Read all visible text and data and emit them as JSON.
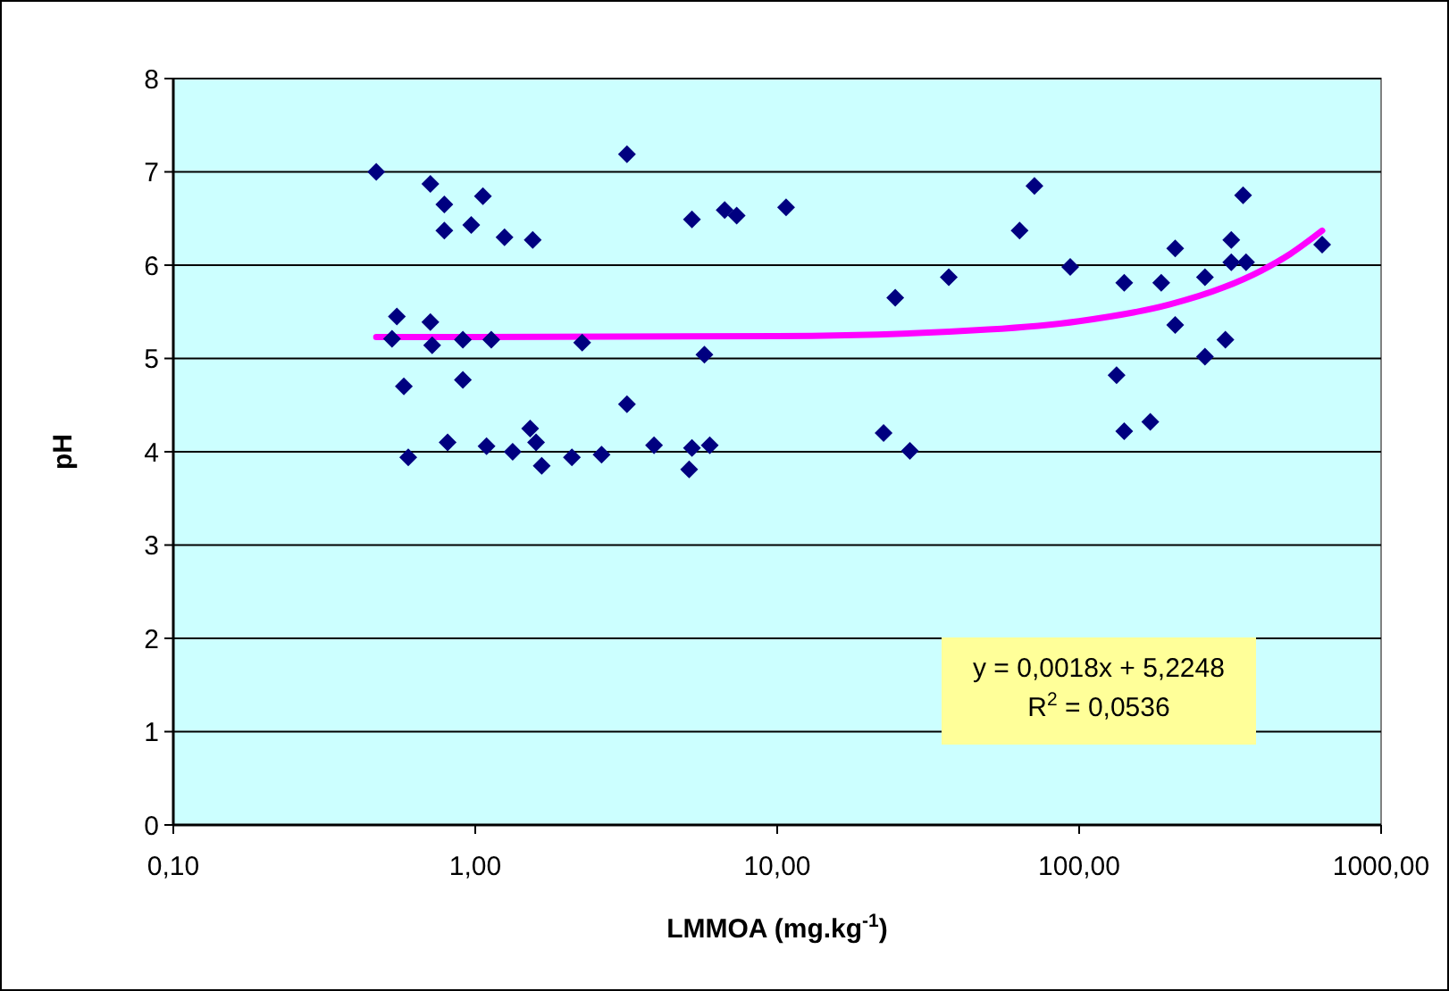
{
  "chart_data": {
    "type": "scatter",
    "xlabel": "LMMOA (mg.kg$^{-1}$)",
    "ylabel": "pH",
    "log": "x",
    "xlim": [
      0.1,
      1000
    ],
    "xticks": [
      {
        "value": 0.1,
        "label": "0,10"
      },
      {
        "value": 1,
        "label": "1,00"
      },
      {
        "value": 10,
        "label": "10,00"
      },
      {
        "value": 100,
        "label": "100,00"
      },
      {
        "value": 1000,
        "label": "1000,00"
      }
    ],
    "ylim": [
      0,
      8
    ],
    "yticks": [
      0,
      1,
      2,
      3,
      4,
      5,
      6,
      7,
      8
    ],
    "grid": "y",
    "marker": "diamond",
    "annotations": [
      "y = 0,0018x + 5,2248",
      "R$^{2}$ = 0,0536"
    ],
    "series": [
      {
        "type": "scatter",
        "color": "#000080",
        "x": [
          0.47,
          0.71,
          0.79,
          0.79,
          0.97,
          1.06,
          1.25,
          1.55,
          0.53,
          0.55,
          0.58,
          0.71,
          0.72,
          0.91,
          1.13,
          0.91,
          0.6,
          0.81,
          1.09,
          1.33,
          1.52,
          1.59,
          1.66,
          2.09,
          2.62,
          2.26,
          3.18,
          3.18,
          3.91,
          5.22,
          5.11,
          5.22,
          5.74,
          5.98,
          6.7,
          7.34,
          10.7,
          22.5,
          27.5,
          24.6,
          37,
          63.5,
          71.1,
          93.4,
          133,
          141,
          141,
          172,
          187,
          208,
          208,
          261,
          261,
          305,
          319,
          319,
          349,
          357,
          638
        ],
        "values": [
          7.0,
          6.87,
          6.65,
          6.37,
          6.43,
          6.74,
          6.3,
          6.27,
          5.21,
          5.45,
          4.7,
          5.39,
          5.14,
          5.2,
          5.2,
          4.77,
          3.94,
          4.1,
          4.06,
          4.0,
          4.25,
          4.1,
          3.85,
          3.94,
          3.97,
          5.17,
          7.19,
          4.51,
          4.07,
          6.49,
          3.81,
          4.04,
          5.04,
          4.07,
          6.59,
          6.53,
          6.62,
          4.2,
          4.01,
          5.65,
          5.87,
          6.37,
          6.85,
          5.98,
          4.82,
          5.81,
          4.22,
          4.32,
          5.81,
          6.18,
          5.36,
          5.87,
          5.02,
          5.2,
          6.27,
          6.03,
          6.75,
          6.03,
          6.22
        ]
      },
      {
        "type": "line",
        "color": "#ff00ff",
        "marker": "none",
        "line_style": "solid",
        "x": [
          0.47,
          1,
          10,
          50,
          100,
          200,
          300,
          400,
          500,
          638
        ],
        "values": [
          5.23,
          5.23,
          5.24,
          5.31,
          5.4,
          5.58,
          5.76,
          5.94,
          6.12,
          6.37
        ]
      }
    ]
  }
}
